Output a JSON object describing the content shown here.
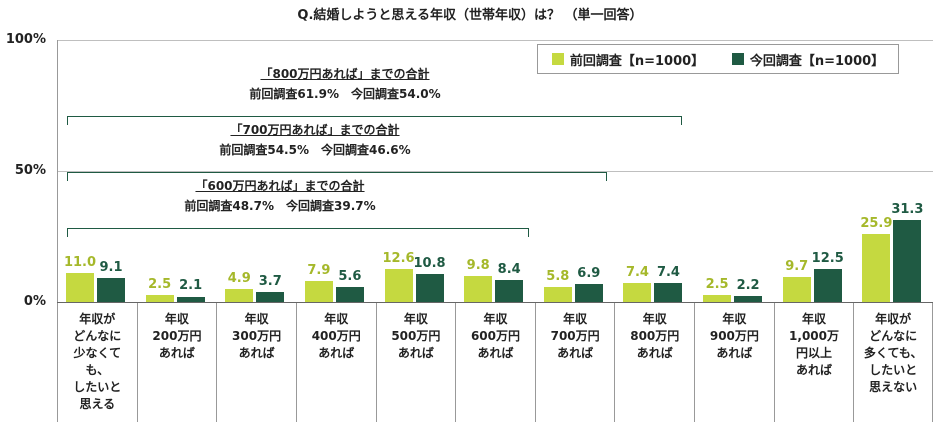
{
  "title": "Q.結婚しようと思える年収（世帯年収）は？ （単一回答）",
  "colors": {
    "prev": "#c5d940",
    "curr": "#1f5a43"
  },
  "y_ticks": [
    "100%",
    "50%",
    "0%"
  ],
  "legend": {
    "prev": "前回調査【n=1000】",
    "curr": "今回調査【n=1000】"
  },
  "annotations": [
    {
      "heading": "「800万円あれば」までの合計",
      "detail": "前回調査61.9%　今回調査54.0%"
    },
    {
      "heading": "「700万円あれば」までの合計",
      "detail": "前回調査54.5%　今回調査46.6%"
    },
    {
      "heading": "「600万円あれば」までの合計",
      "detail": "前回調査48.7%　今回調査39.7%"
    }
  ],
  "categories": [
    "年収が\nどんなに\n少なくて\nも、\nしたいと\n思える",
    "年収\n200万円\nあれば",
    "年収\n300万円\nあれば",
    "年収\n400万円\nあれば",
    "年収\n500万円\nあれば",
    "年収\n600万円\nあれば",
    "年収\n700万円\nあれば",
    "年収\n800万円\nあれば",
    "年収\n900万円\nあれば",
    "年収\n1,000万\n円以上\nあれば",
    "年収が\nどんなに\n多くても、\nしたいと\n思えない"
  ],
  "values_prev": [
    "11.0",
    "2.5",
    "4.9",
    "7.9",
    "12.6",
    "9.8",
    "5.8",
    "7.4",
    "2.5",
    "9.7",
    "25.9"
  ],
  "values_curr": [
    "9.1",
    "2.1",
    "3.7",
    "5.6",
    "10.8",
    "8.4",
    "6.9",
    "7.4",
    "2.2",
    "12.5",
    "31.3"
  ],
  "chart_data": {
    "type": "bar",
    "title": "Q.結婚しようと思える年収（世帯年収）は？ （単一回答）",
    "categories": [
      "年収がどんなに少なくても、したいと思える",
      "年収200万円あれば",
      "年収300万円あれば",
      "年収400万円あれば",
      "年収500万円あれば",
      "年収600万円あれば",
      "年収700万円あれば",
      "年収800万円あれば",
      "年収900万円あれば",
      "年収1,000万円以上あれば",
      "年収がどんなに多くても、したいと思えない"
    ],
    "series": [
      {
        "name": "前回調査【n=1000】",
        "values": [
          11.0,
          2.5,
          4.9,
          7.9,
          12.6,
          9.8,
          5.8,
          7.4,
          2.5,
          9.7,
          25.9
        ]
      },
      {
        "name": "今回調査【n=1000】",
        "values": [
          9.1,
          2.1,
          3.7,
          5.6,
          10.8,
          8.4,
          6.9,
          7.4,
          2.2,
          12.5,
          31.3
        ]
      }
    ],
    "xlabel": "",
    "ylabel": "",
    "ylim": [
      0,
      100
    ],
    "yticks": [
      "0%",
      "50%",
      "100%"
    ],
    "grid": true,
    "legend_position": "top-right",
    "annotations": [
      "「800万円あれば」までの合計 前回調査61.9% 今回調査54.0%",
      "「700万円あれば」までの合計 前回調査54.5% 今回調査46.6%",
      "「600万円あれば」までの合計 前回調査48.7% 今回調査39.7%"
    ]
  }
}
